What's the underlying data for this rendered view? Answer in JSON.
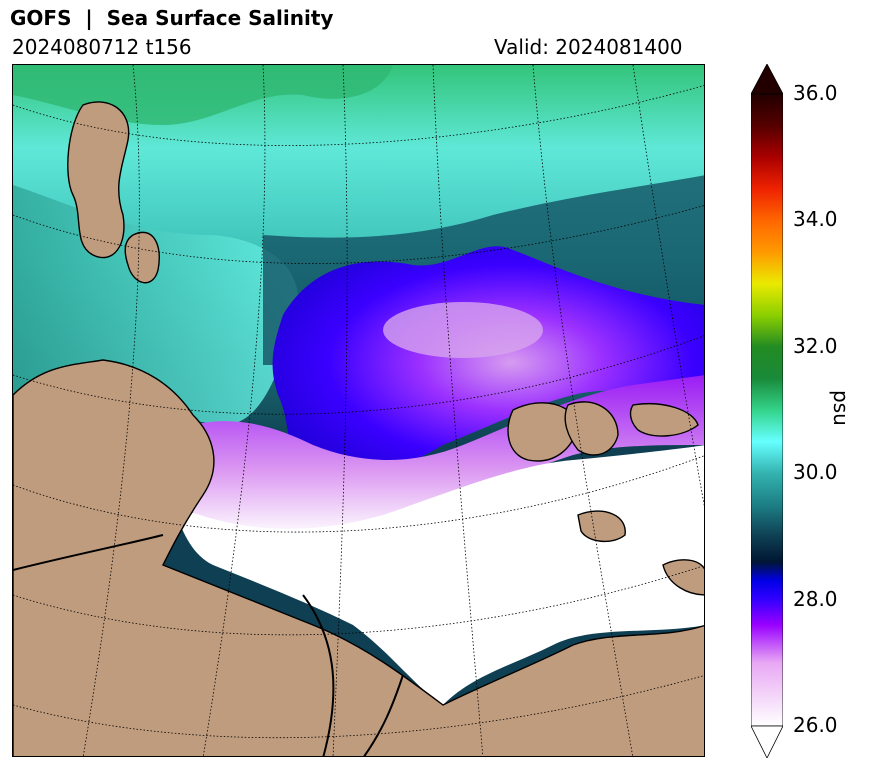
{
  "header": {
    "title": "GOFS  |  Sea Surface Salinity",
    "run_label": "2024080712 t156",
    "valid_label": "Valid: 2024081400"
  },
  "colorbar": {
    "unit": "psu",
    "min": 26.0,
    "max": 36.0,
    "ticks": [
      "26.0",
      "28.0",
      "30.0",
      "32.0",
      "34.0",
      "36.0"
    ],
    "extend": "both",
    "stops": [
      {
        "value": 26.0,
        "color": "#ffffff"
      },
      {
        "value": 27.0,
        "color": "#e8a8f4"
      },
      {
        "value": 27.6,
        "color": "#9900ff"
      },
      {
        "value": 28.0,
        "color": "#3300ff"
      },
      {
        "value": 28.3,
        "color": "#0000e6"
      },
      {
        "value": 28.6,
        "color": "#001633"
      },
      {
        "value": 29.0,
        "color": "#0e3f52"
      },
      {
        "value": 29.5,
        "color": "#1d7f86"
      },
      {
        "value": 30.0,
        "color": "#33b3b0"
      },
      {
        "value": 30.5,
        "color": "#66ffff"
      },
      {
        "value": 31.0,
        "color": "#33d38a"
      },
      {
        "value": 31.5,
        "color": "#1a8a3a"
      },
      {
        "value": 32.0,
        "color": "#228b22"
      },
      {
        "value": 32.5,
        "color": "#8ccf00"
      },
      {
        "value": 33.0,
        "color": "#eaea00"
      },
      {
        "value": 33.5,
        "color": "#ff9900"
      },
      {
        "value": 34.0,
        "color": "#ff6600"
      },
      {
        "value": 34.5,
        "color": "#ee2200"
      },
      {
        "value": 35.0,
        "color": "#aa0000"
      },
      {
        "value": 35.5,
        "color": "#550000"
      },
      {
        "value": 36.0,
        "color": "#220000"
      }
    ]
  },
  "map_colors": {
    "land": "#c09c7e",
    "ice_or_low": "#ffffff",
    "coast": "#000000"
  }
}
